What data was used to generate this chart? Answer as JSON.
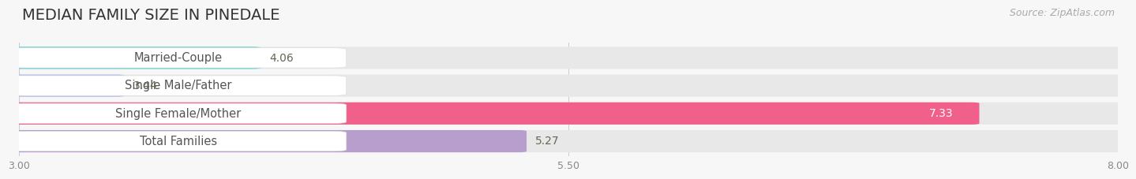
{
  "title": "MEDIAN FAMILY SIZE IN PINEDALE",
  "source": "Source: ZipAtlas.com",
  "categories": [
    "Married-Couple",
    "Single Male/Father",
    "Single Female/Mother",
    "Total Families"
  ],
  "values": [
    4.06,
    3.44,
    7.33,
    5.27
  ],
  "bar_colors": [
    "#5ecece",
    "#aabce8",
    "#f0608a",
    "#b89ecc"
  ],
  "value_label_colors": [
    "#555533",
    "#555533",
    "#ffffff",
    "#555533"
  ],
  "xmin": 3.0,
  "xmax": 8.0,
  "xticks": [
    3.0,
    5.5,
    8.0
  ],
  "background_color": "#f7f7f7",
  "bar_background_color": "#e8e8e8",
  "title_fontsize": 14,
  "source_fontsize": 9,
  "label_fontsize": 10.5,
  "value_fontsize": 10
}
